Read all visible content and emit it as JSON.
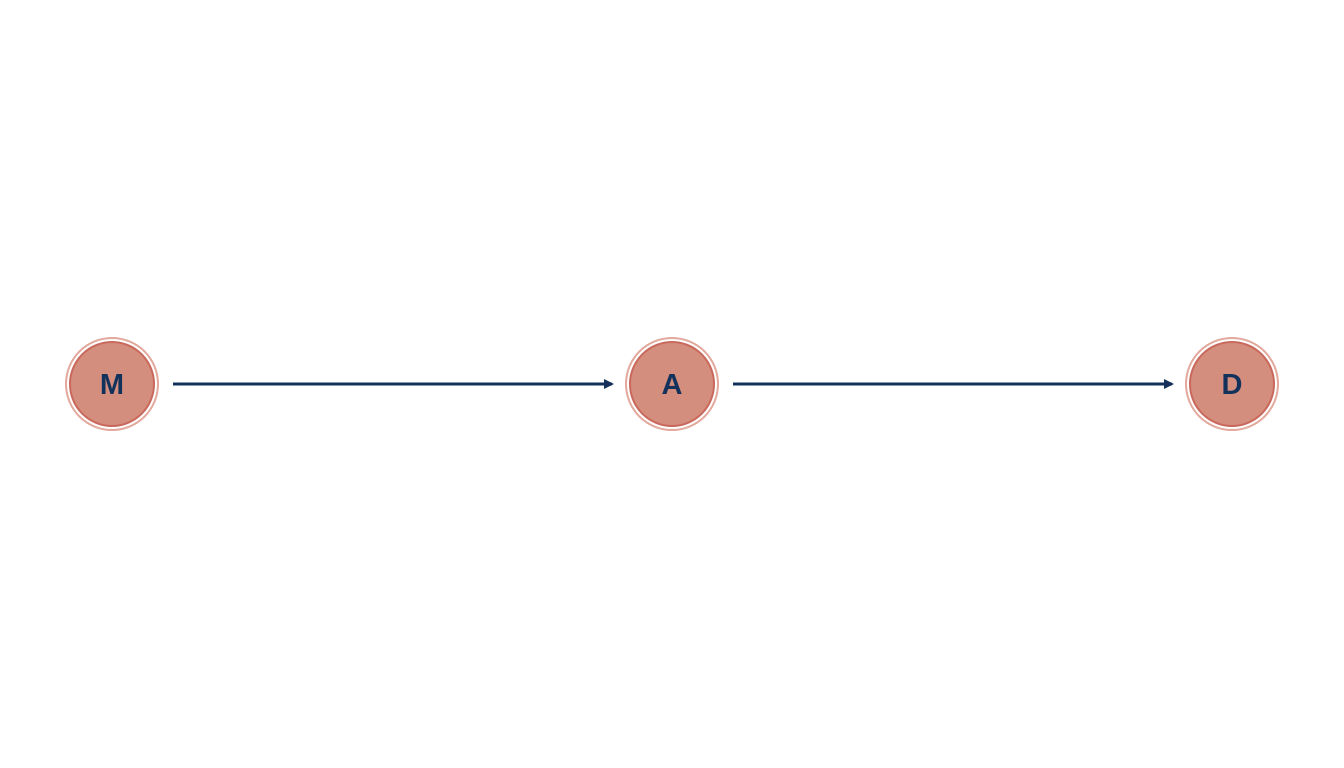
{
  "diagram": {
    "type": "directed-acyclic-graph",
    "layout": "horizontal-chain",
    "colors": {
      "node_fill": "#d38e7e",
      "node_stroke": "#c9685b",
      "node_ring": "#e8b3a8",
      "label": "#13325b",
      "edge": "#13325b",
      "background": "#ffffff"
    },
    "nodes": [
      {
        "id": "M",
        "label": "M"
      },
      {
        "id": "A",
        "label": "A"
      },
      {
        "id": "D",
        "label": "D"
      }
    ],
    "edges": [
      {
        "from": "M",
        "to": "A"
      },
      {
        "from": "A",
        "to": "D"
      }
    ]
  }
}
